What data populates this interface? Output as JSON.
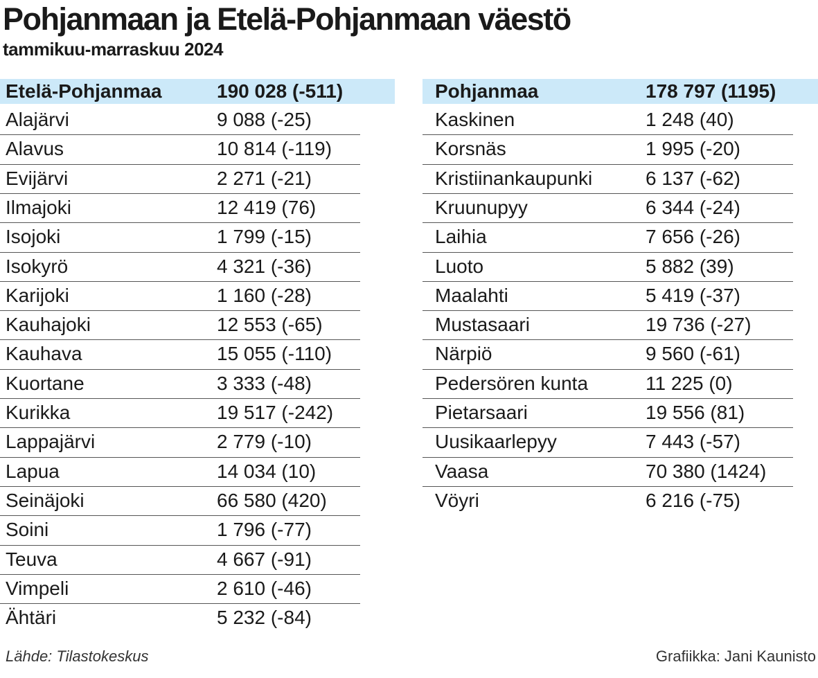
{
  "header": {
    "title": "Pohjanmaan ja Etelä-Pohjanmaan väestö",
    "subtitle": "tammikuu-marraskuu 2024"
  },
  "tables": [
    {
      "header": [
        "Etelä-Pohjanmaa",
        "190 028 (-511)"
      ],
      "rows": [
        [
          "Alajärvi",
          "9 088 (-25)"
        ],
        [
          "Alavus",
          "10 814 (-119)"
        ],
        [
          "Evijärvi",
          "2 271 (-21)"
        ],
        [
          "Ilmajoki",
          "12 419 (76)"
        ],
        [
          "Isojoki",
          "1 799 (-15)"
        ],
        [
          "Isokyrö",
          "4 321 (-36)"
        ],
        [
          "Karijoki",
          "1 160 (-28)"
        ],
        [
          "Kauhajoki",
          "12 553 (-65)"
        ],
        [
          "Kauhava",
          "15 055 (-110)"
        ],
        [
          "Kuortane",
          "3 333 (-48)"
        ],
        [
          "Kurikka",
          "19 517 (-242)"
        ],
        [
          "Lappajärvi",
          "2 779 (-10)"
        ],
        [
          "Lapua",
          "14 034 (10)"
        ],
        [
          "Seinäjoki",
          "66 580 (420)"
        ],
        [
          "Soini",
          "1 796 (-77)"
        ],
        [
          "Teuva",
          "4 667 (-91)"
        ],
        [
          "Vimpeli",
          "2 610 (-46)"
        ],
        [
          "Ähtäri",
          "5 232 (-84)"
        ]
      ]
    },
    {
      "header": [
        "Pohjanmaa",
        "178 797 (1195)"
      ],
      "rows": [
        [
          "Kaskinen",
          "1 248 (40)"
        ],
        [
          "Korsnäs",
          "1 995 (-20)"
        ],
        [
          "Kristiinankaupunki",
          "6 137 (-62)"
        ],
        [
          "Kruunupyy",
          "6 344 (-24)"
        ],
        [
          "Laihia",
          "7 656 (-26)"
        ],
        [
          "Luoto",
          "5 882 (39)"
        ],
        [
          "Maalahti",
          "5 419 (-37)"
        ],
        [
          "Mustasaari",
          "19 736 (-27)"
        ],
        [
          "Närpiö",
          "9 560 (-61)"
        ],
        [
          "Pedersören kunta",
          "11 225 (0)"
        ],
        [
          "Pietarsaari",
          "19 556 (81)"
        ],
        [
          "Uusikaarlepyy",
          "7 443 (-57)"
        ],
        [
          "Vaasa",
          "70 380 (1424)"
        ],
        [
          "Vöyri",
          "6 216 (-75)"
        ]
      ]
    }
  ],
  "footer": {
    "source": "Lähde: Tilastokeskus",
    "credit": "Grafiikka: Jani Kaunisto"
  }
}
